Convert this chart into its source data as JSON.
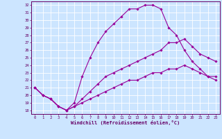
{
  "xlabel": "Windchill (Refroidissement éolien,°C)",
  "bg_color": "#cce5ff",
  "grid_color": "#ffffff",
  "line_color": "#990099",
  "xlim": [
    -0.5,
    23.5
  ],
  "ylim": [
    17.5,
    32.5
  ],
  "xticks": [
    0,
    1,
    2,
    3,
    4,
    5,
    6,
    7,
    8,
    9,
    10,
    11,
    12,
    13,
    14,
    15,
    16,
    17,
    18,
    19,
    20,
    21,
    22,
    23
  ],
  "yticks": [
    18,
    19,
    20,
    21,
    22,
    23,
    24,
    25,
    26,
    27,
    28,
    29,
    30,
    31,
    32
  ],
  "line1_x": [
    0,
    1,
    2,
    3,
    4,
    5,
    6,
    7,
    8,
    9,
    10,
    11,
    12,
    13,
    14,
    15,
    16,
    17,
    18,
    19,
    20,
    21,
    22,
    23
  ],
  "line1_y": [
    21,
    20,
    19.5,
    18.5,
    18,
    19,
    22.5,
    25,
    27,
    28.5,
    29.5,
    30.5,
    31.5,
    31.5,
    32,
    32,
    31.5,
    29,
    28,
    26,
    24.5,
    23.5,
    22.5,
    22
  ],
  "line2_x": [
    0,
    1,
    2,
    3,
    4,
    5,
    6,
    7,
    8,
    9,
    10,
    11,
    12,
    13,
    14,
    15,
    16,
    17,
    18,
    19,
    20,
    21,
    22,
    23
  ],
  "line2_y": [
    21,
    20,
    19.5,
    18.5,
    18,
    18.5,
    19.5,
    20.5,
    21.5,
    22.5,
    23,
    23.5,
    24,
    24.5,
    25,
    25.5,
    26,
    27,
    27,
    27.5,
    26.5,
    25.5,
    25,
    24.5
  ],
  "line3_x": [
    0,
    1,
    2,
    3,
    4,
    5,
    6,
    7,
    8,
    9,
    10,
    11,
    12,
    13,
    14,
    15,
    16,
    17,
    18,
    19,
    20,
    21,
    22,
    23
  ],
  "line3_y": [
    21,
    20,
    19.5,
    18.5,
    18,
    18.5,
    19,
    19.5,
    20,
    20.5,
    21,
    21.5,
    22,
    22,
    22.5,
    23,
    23,
    23.5,
    23.5,
    24,
    23.5,
    23,
    22.5,
    22.5
  ]
}
